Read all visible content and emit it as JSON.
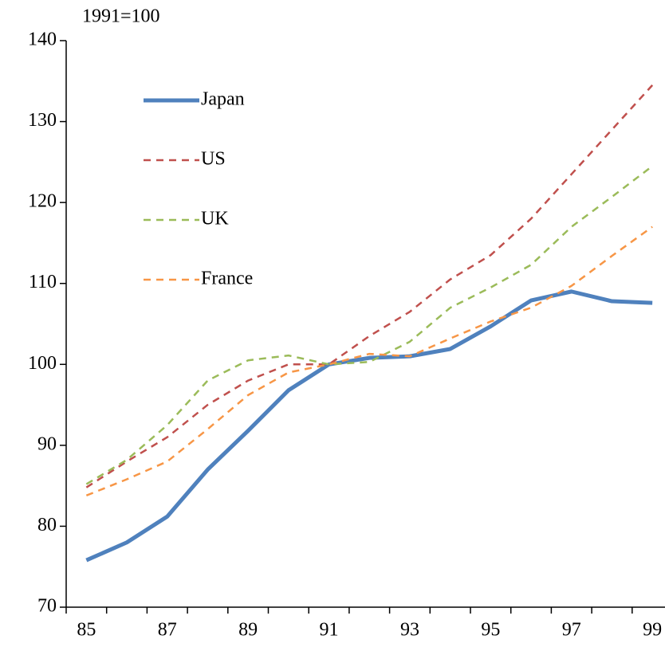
{
  "chart_data": {
    "type": "line",
    "subtitle": "1991=100",
    "categories": [
      "85",
      null,
      "87",
      null,
      "89",
      null,
      "91",
      null,
      "93",
      null,
      "95",
      null,
      "97",
      null,
      "99"
    ],
    "series": [
      {
        "name": "Japan",
        "color": "#4f81bd",
        "dash": "solid",
        "values": [
          75.8,
          78,
          81.2,
          87,
          91.8,
          96.8,
          100,
          100.8,
          101,
          101.9,
          104.7,
          107.9,
          109,
          107.8,
          107.6
        ]
      },
      {
        "name": "US",
        "color": "#c0504d",
        "dash": "dashed",
        "values": [
          84.8,
          88,
          91,
          95,
          98,
          100,
          100,
          103.5,
          106.5,
          110.5,
          113.5,
          118,
          123.5,
          129,
          134.5
        ]
      },
      {
        "name": "UK",
        "color": "#9bbb59",
        "dash": "dashed",
        "values": [
          85.2,
          88.2,
          92.5,
          98,
          100.5,
          101.1,
          100,
          100.3,
          102.8,
          107,
          109.5,
          112.3,
          117,
          120.7,
          124.5
        ]
      },
      {
        "name": "France",
        "color": "#f79646",
        "dash": "dashed",
        "values": [
          83.8,
          85.8,
          88,
          92,
          96.2,
          99,
          100,
          101.3,
          101,
          103.2,
          105.3,
          107,
          109.7,
          113.4,
          117
        ]
      }
    ],
    "ylim": [
      70,
      140
    ],
    "yticks": [
      70,
      80,
      90,
      100,
      110,
      120,
      130,
      140
    ],
    "grid": false,
    "legend": "upper left"
  }
}
